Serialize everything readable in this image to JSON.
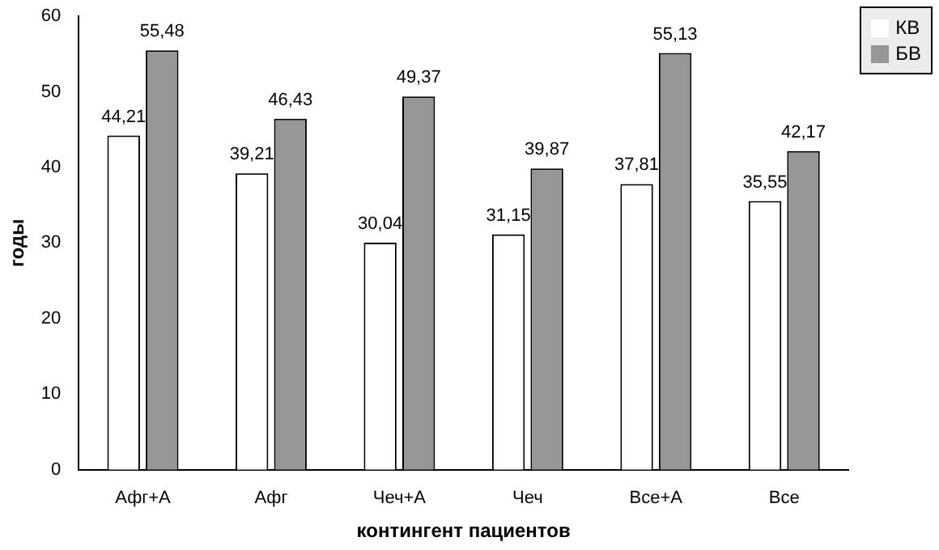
{
  "chart_data": {
    "type": "bar",
    "xlabel": "контингент пациентов",
    "ylabel": "годы",
    "categories": [
      "Афг+А",
      "Афг",
      "Чеч+А",
      "Чеч",
      "Все+А",
      "Все"
    ],
    "series": [
      {
        "name": "КВ",
        "color": "#ffffff",
        "values": [
          44.21,
          39.21,
          30.04,
          31.15,
          37.81,
          35.55
        ],
        "value_labels": [
          "44,21",
          "39,21",
          "30,04",
          "31,15",
          "37,81",
          "35,55"
        ]
      },
      {
        "name": "БВ",
        "color": "#969696",
        "values": [
          55.48,
          46.43,
          49.37,
          39.87,
          55.13,
          42.17
        ],
        "value_labels": [
          "55,48",
          "46,43",
          "49,37",
          "39,87",
          "55,13",
          "42,17"
        ]
      }
    ],
    "ylim": [
      0,
      60
    ],
    "yticks": [
      0,
      10,
      20,
      30,
      40,
      50,
      60
    ],
    "legend": "top right"
  }
}
